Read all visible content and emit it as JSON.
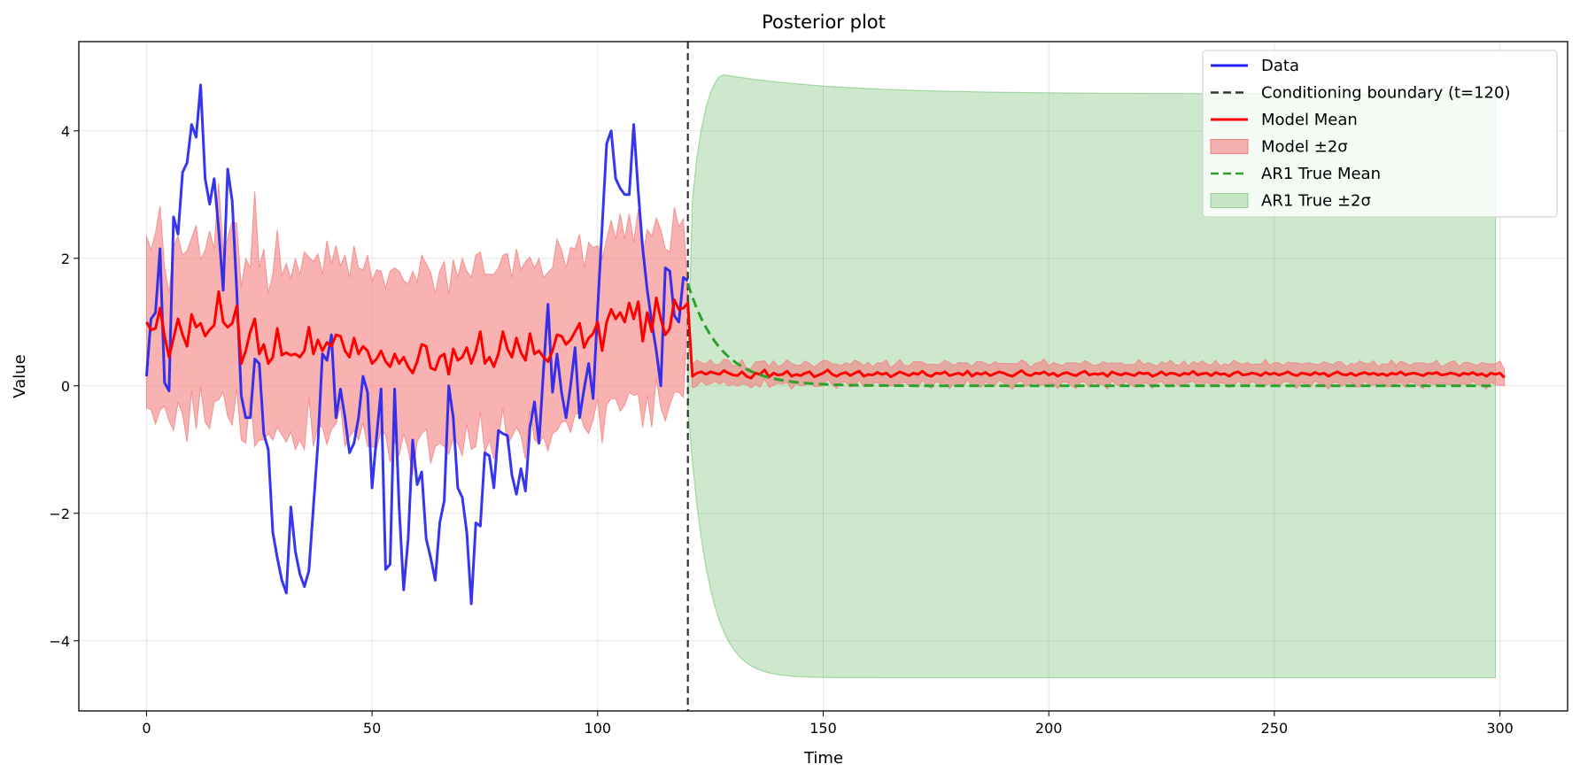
{
  "chart_data": {
    "type": "line",
    "title": "Posterior plot",
    "xlabel": "Time",
    "ylabel": "Value",
    "xlim": [
      -15,
      315
    ],
    "ylim": [
      -5.1,
      5.4
    ],
    "xticks": [
      0,
      50,
      100,
      150,
      200,
      250,
      300
    ],
    "yticks": [
      -4,
      -2,
      0,
      2,
      4
    ],
    "xtick_labels": [
      "0",
      "50",
      "100",
      "150",
      "200",
      "250",
      "300"
    ],
    "ytick_labels": [
      "−4",
      "−2",
      "0",
      "2",
      "4"
    ],
    "grid": true,
    "legend_position": "top-right",
    "boundary": {
      "x": 120,
      "label": "Conditioning boundary (t=120)",
      "color": "#333333",
      "style": "dashed"
    },
    "series": [
      {
        "name": "Data",
        "kind": "line",
        "color": "#2020f0",
        "x": [
          0,
          1,
          2,
          3,
          4,
          5,
          6,
          7,
          8,
          9,
          10,
          11,
          12,
          13,
          14,
          15,
          16,
          17,
          18,
          19,
          20,
          21,
          22,
          23,
          24,
          25,
          26,
          27,
          28,
          29,
          30,
          31,
          32,
          33,
          34,
          35,
          36,
          37,
          38,
          39,
          40,
          41,
          42,
          43,
          44,
          45,
          46,
          47,
          48,
          49,
          50,
          51,
          52,
          53,
          54,
          55,
          56,
          57,
          58,
          59,
          60,
          61,
          62,
          63,
          64,
          65,
          66,
          67,
          68,
          69,
          70,
          71,
          72,
          73,
          74,
          75,
          76,
          77,
          78,
          79,
          80,
          81,
          82,
          83,
          84,
          85,
          86,
          87,
          88,
          89,
          90,
          91,
          92,
          93,
          94,
          95,
          96,
          97,
          98,
          99,
          100,
          101,
          102,
          103,
          104,
          105,
          106,
          107,
          108,
          109,
          110,
          111,
          112,
          113,
          114,
          115,
          116,
          117,
          118,
          119,
          120
        ],
        "y": [
          0.15,
          1.05,
          1.15,
          2.15,
          0.05,
          -0.08,
          2.65,
          2.38,
          3.35,
          3.5,
          4.1,
          3.9,
          4.72,
          3.25,
          2.85,
          3.25,
          2.45,
          1.5,
          3.4,
          2.9,
          1.5,
          -0.15,
          -0.5,
          -0.5,
          0.42,
          0.35,
          -0.75,
          -1.0,
          -2.3,
          -2.7,
          -3.05,
          -3.25,
          -1.9,
          -2.6,
          -2.95,
          -3.15,
          -2.9,
          -1.9,
          -0.9,
          0.5,
          0.4,
          0.8,
          -0.5,
          -0.05,
          -0.5,
          -1.05,
          -0.9,
          -0.5,
          0.15,
          -0.1,
          -1.6,
          -0.8,
          -0.05,
          -2.88,
          -2.8,
          -0.05,
          -1.9,
          -3.2,
          -2.4,
          -0.85,
          -1.55,
          -1.35,
          -2.4,
          -2.7,
          -3.05,
          -2.15,
          -1.8,
          0.0,
          -0.5,
          -1.6,
          -1.75,
          -2.3,
          -3.42,
          -2.15,
          -2.2,
          -1.05,
          -1.1,
          -1.6,
          -0.7,
          -0.75,
          -0.78,
          -1.4,
          -1.7,
          -1.3,
          -1.65,
          -0.65,
          -0.25,
          -0.9,
          0.25,
          1.28,
          -0.1,
          0.5,
          -0.1,
          -0.5,
          0.0,
          0.6,
          -0.5,
          -0.05,
          0.35,
          -0.2,
          1.2,
          2.5,
          3.8,
          4.0,
          3.25,
          3.1,
          3.0,
          3.0,
          4.1,
          3.05,
          2.15,
          1.5,
          1.0,
          0.55,
          0.0,
          1.85,
          1.8,
          1.1,
          1.0,
          1.7,
          1.65
        ]
      },
      {
        "name": "Model Mean",
        "kind": "line",
        "color": "#ff0000",
        "x_start": 0,
        "y": [
          1.0,
          0.88,
          0.9,
          1.22,
          0.78,
          0.45,
          0.75,
          1.05,
          0.8,
          0.62,
          1.12,
          0.92,
          0.98,
          0.78,
          0.88,
          0.95,
          1.48,
          1.0,
          0.92,
          0.98,
          1.25,
          0.35,
          0.55,
          0.85,
          1.05,
          0.5,
          0.65,
          0.35,
          0.45,
          0.9,
          0.48,
          0.52,
          0.48,
          0.5,
          0.45,
          0.55,
          0.92,
          0.5,
          0.72,
          0.55,
          0.68,
          0.62,
          0.8,
          0.78,
          0.55,
          0.45,
          0.75,
          0.5,
          0.62,
          0.55,
          0.35,
          0.42,
          0.55,
          0.38,
          0.3,
          0.5,
          0.35,
          0.45,
          0.3,
          0.2,
          0.38,
          0.65,
          0.62,
          0.28,
          0.25,
          0.45,
          0.5,
          0.18,
          0.58,
          0.4,
          0.45,
          0.6,
          0.35,
          0.55,
          0.85,
          0.35,
          0.45,
          0.3,
          0.5,
          0.85,
          0.58,
          0.45,
          0.75,
          0.52,
          0.4,
          0.82,
          0.5,
          0.55,
          0.45,
          0.38,
          0.55,
          0.8,
          0.78,
          0.65,
          0.72,
          0.85,
          0.98,
          0.6,
          0.75,
          0.82,
          1.0,
          0.55,
          1.0,
          1.2,
          1.05,
          1.15,
          1.0,
          1.3,
          1.05,
          1.32,
          0.7,
          1.15,
          0.85,
          1.38,
          1.05,
          0.8,
          0.9,
          1.35,
          1.2,
          1.22,
          1.3,
          0.15,
          0.2,
          0.22,
          0.18,
          0.22,
          0.2,
          0.18,
          0.24,
          0.2,
          0.17,
          0.16,
          0.22,
          0.15,
          0.12,
          0.2,
          0.18,
          0.25,
          0.14,
          0.2,
          0.17,
          0.18,
          0.23,
          0.15,
          0.18,
          0.16,
          0.2,
          0.22,
          0.14,
          0.17,
          0.2,
          0.25,
          0.18,
          0.15,
          0.19,
          0.21,
          0.16,
          0.2,
          0.23,
          0.15,
          0.18,
          0.17,
          0.21,
          0.18,
          0.2,
          0.14,
          0.18,
          0.22,
          0.19,
          0.16,
          0.2,
          0.18,
          0.23,
          0.17,
          0.15,
          0.2,
          0.19,
          0.22,
          0.16,
          0.18,
          0.2,
          0.17,
          0.23,
          0.15,
          0.2,
          0.18,
          0.21,
          0.16,
          0.19,
          0.22,
          0.2,
          0.17,
          0.15,
          0.2,
          0.24,
          0.18,
          0.16,
          0.2,
          0.19,
          0.22,
          0.17,
          0.2,
          0.15,
          0.19,
          0.21,
          0.18,
          0.16,
          0.2,
          0.23,
          0.17,
          0.19,
          0.18,
          0.2,
          0.15,
          0.22,
          0.19,
          0.17,
          0.2,
          0.18,
          0.16,
          0.21,
          0.19,
          0.2,
          0.15,
          0.18,
          0.22,
          0.17,
          0.2,
          0.19,
          0.16,
          0.2,
          0.18,
          0.23,
          0.17,
          0.19,
          0.2,
          0.16,
          0.21,
          0.18,
          0.19,
          0.15,
          0.2,
          0.22,
          0.17,
          0.18,
          0.2,
          0.19,
          0.16,
          0.21,
          0.18,
          0.2,
          0.17,
          0.19,
          0.22,
          0.18,
          0.16,
          0.2,
          0.19,
          0.17,
          0.21,
          0.18,
          0.2,
          0.15,
          0.19,
          0.22,
          0.18,
          0.17,
          0.2,
          0.16,
          0.19,
          0.21,
          0.18,
          0.2,
          0.17,
          0.19,
          0.16,
          0.2,
          0.18,
          0.22,
          0.17,
          0.19,
          0.2,
          0.18,
          0.16,
          0.2,
          0.19,
          0.21,
          0.17,
          0.18,
          0.2,
          0.19,
          0.16,
          0.2,
          0.18,
          0.21,
          0.17,
          0.19,
          0.15,
          0.2,
          0.18,
          0.2,
          0.13
        ]
      },
      {
        "name": "Model ±2σ",
        "kind": "band",
        "color": "#f47f7f",
        "opacity": 0.6,
        "x_start": 0,
        "halfwidth": [
          1.35,
          1.25,
          1.5,
          1.6,
          1.1,
          1.0,
          1.45,
          1.3,
          1.25,
          1.5,
          1.2,
          1.6,
          1.0,
          1.35,
          1.55,
          1.2,
          1.7,
          1.1,
          1.4,
          1.6,
          1.3,
          1.2,
          1.45,
          1.0,
          2.0,
          1.35,
          1.5,
          1.1,
          1.3,
          1.55,
          1.25,
          1.4,
          1.2,
          1.5,
          1.3,
          1.55,
          1.1,
          1.45,
          1.35,
          1.2,
          1.6,
          1.3,
          1.4,
          1.1,
          1.5,
          1.25,
          1.45,
          1.35,
          1.2,
          1.5,
          1.3,
          1.4,
          1.25,
          1.15,
          1.5,
          1.35,
          1.45,
          1.2,
          1.3,
          1.6,
          1.25,
          1.4,
          1.3,
          1.5,
          1.2,
          1.35,
          1.45,
          1.25,
          1.4,
          1.3,
          1.55,
          1.2,
          1.35,
          1.5,
          1.25,
          1.4,
          1.3,
          1.45,
          1.35,
          1.2,
          1.5,
          1.25,
          1.4,
          1.3,
          1.55,
          1.2,
          1.35,
          1.45,
          1.25,
          1.4,
          1.3,
          1.5,
          1.35,
          1.2,
          1.45,
          1.3,
          1.4,
          1.25,
          1.5,
          1.35,
          1.2,
          1.45,
          1.3,
          1.4,
          1.25,
          1.55,
          1.3,
          1.4,
          1.2,
          1.45,
          1.35,
          1.3,
          1.5,
          1.25,
          1.4,
          1.35,
          1.2,
          1.45,
          1.3,
          1.4,
          1.3
        ],
        "halfwidth_forecast": 0.13
      },
      {
        "name": "AR1 True Mean",
        "kind": "line",
        "color": "#2ca02c",
        "style": "dashed",
        "x_start": 120,
        "x_end": 299,
        "start_value": 1.6,
        "decay_per_step": 0.87,
        "asymptote": 0.0
      },
      {
        "name": "AR1 True ±2σ",
        "kind": "band",
        "color": "#2ca02c",
        "opacity": 0.24,
        "x_start": 120,
        "x_end": 299,
        "start_halfwidth": 0.35,
        "asymptote_halfwidth": 4.58,
        "overshoot_peak": 4.88,
        "peak_at": 128,
        "offset": 0.0
      }
    ],
    "legend": [
      {
        "label": "Data",
        "color": "#2020f0",
        "kind": "line"
      },
      {
        "label": "Conditioning boundary (t=120)",
        "color": "#333333",
        "kind": "dashed"
      },
      {
        "label": "Model Mean",
        "color": "#ff0000",
        "kind": "line"
      },
      {
        "label": "Model ±2σ",
        "color": "#f47f7f",
        "kind": "patch"
      },
      {
        "label": "AR1 True Mean",
        "color": "#2ca02c",
        "kind": "dashed"
      },
      {
        "label": "AR1 True ±2σ",
        "color": "#2ca02c",
        "kind": "patch-green"
      }
    ]
  }
}
